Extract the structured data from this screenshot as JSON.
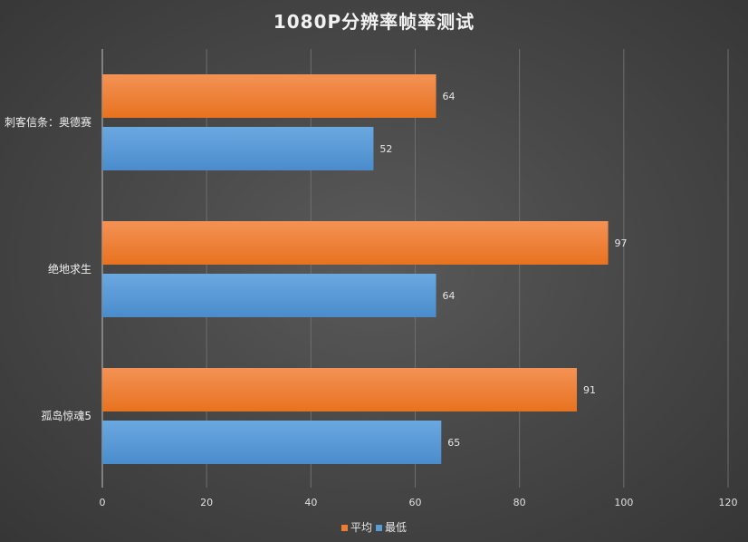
{
  "chart_data": {
    "type": "bar",
    "orientation": "horizontal",
    "title": "1080P分辨率帧率测试",
    "categories": [
      "刺客信条：奥德赛",
      "绝地求生",
      "孤岛惊魂5"
    ],
    "series": [
      {
        "name": "平均",
        "values": [
          64,
          97,
          91
        ],
        "color": "#ed7d31"
      },
      {
        "name": "最低",
        "values": [
          52,
          64,
          65
        ],
        "color": "#5b9bd5"
      }
    ],
    "xlim": [
      0,
      120
    ],
    "xticks": [
      0,
      20,
      40,
      60,
      80,
      100,
      120
    ],
    "xtick_labels": [
      "0",
      "20",
      "40",
      "60",
      "80",
      "100",
      "120"
    ],
    "grid": true,
    "data_labels": true,
    "legend_position": "bottom"
  }
}
